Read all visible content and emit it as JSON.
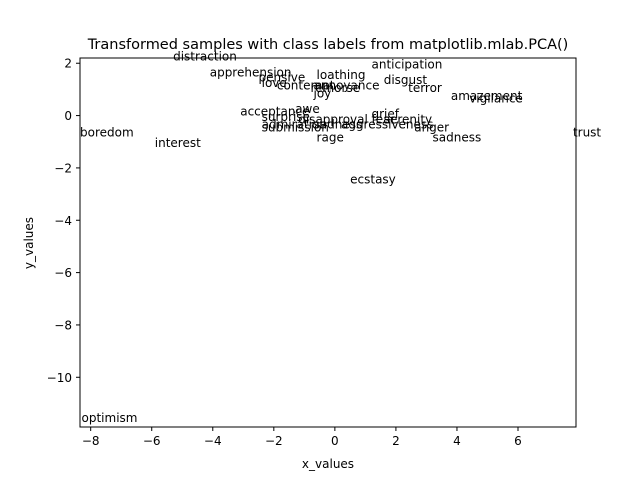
{
  "chart_data": {
    "type": "scatter",
    "title": "Transformed samples with class labels from matplotlib.mlab.PCA()",
    "xlabel": "x_values",
    "ylabel": "y_values",
    "xlim": [
      -8.35,
      7.9
    ],
    "ylim": [
      -11.9,
      2.2
    ],
    "xticks": [
      -8,
      -6,
      -4,
      -2,
      0,
      2,
      4,
      6
    ],
    "yticks": [
      2,
      0,
      -2,
      -4,
      -6,
      -8,
      -10
    ],
    "xtick_labels": [
      "−8",
      "−6",
      "−4",
      "−2",
      "0",
      "2",
      "4",
      "6"
    ],
    "ytick_labels": [
      "2",
      "0",
      "−2",
      "−4",
      "−6",
      "−8",
      "−10"
    ],
    "grid": false,
    "points": [
      {
        "label": "distraction",
        "x": -5.3,
        "y": 2.1
      },
      {
        "label": "anticipation",
        "x": 1.2,
        "y": 1.8
      },
      {
        "label": "apprehension",
        "x": -4.1,
        "y": 1.5
      },
      {
        "label": "loathing",
        "x": -0.6,
        "y": 1.4
      },
      {
        "label": "pensive",
        "x": -2.5,
        "y": 1.3
      },
      {
        "label": "disgust",
        "x": 1.6,
        "y": 1.2
      },
      {
        "label": "love",
        "x": -2.4,
        "y": 1.1
      },
      {
        "label": "annoyance",
        "x": -0.7,
        "y": 1.0
      },
      {
        "label": "contempt",
        "x": -1.9,
        "y": 1.0
      },
      {
        "label": "terror",
        "x": 2.4,
        "y": 0.9
      },
      {
        "label": "remorse",
        "x": -0.8,
        "y": 0.9
      },
      {
        "label": "joy",
        "x": -0.7,
        "y": 0.7
      },
      {
        "label": "amazement",
        "x": 3.8,
        "y": 0.6
      },
      {
        "label": "vigilance",
        "x": 4.4,
        "y": 0.5
      },
      {
        "label": "acceptance",
        "x": -3.1,
        "y": 0.0
      },
      {
        "label": "awe",
        "x": -1.3,
        "y": 0.1
      },
      {
        "label": "grief",
        "x": 1.2,
        "y": -0.1
      },
      {
        "label": "surprise",
        "x": -2.4,
        "y": -0.2
      },
      {
        "label": "disapproval",
        "x": -1.2,
        "y": -0.3
      },
      {
        "label": "fear",
        "x": 1.2,
        "y": -0.3
      },
      {
        "label": "serenity",
        "x": 1.6,
        "y": -0.3
      },
      {
        "label": "admiration",
        "x": -2.4,
        "y": -0.5
      },
      {
        "label": "submission",
        "x": -2.4,
        "y": -0.6
      },
      {
        "label": "sadness",
        "x": -0.7,
        "y": -0.5
      },
      {
        "label": "aggressiveness",
        "x": 0.2,
        "y": -0.5
      },
      {
        "label": "anger",
        "x": 2.6,
        "y": -0.6
      },
      {
        "label": "rage",
        "x": -0.6,
        "y": -1.0
      },
      {
        "label": "sadness",
        "x": 3.2,
        "y": -1.0
      },
      {
        "label": "boredom",
        "x": -8.35,
        "y": -0.8
      },
      {
        "label": "trust",
        "x": 7.8,
        "y": -0.8
      },
      {
        "label": "interest",
        "x": -5.9,
        "y": -1.2
      },
      {
        "label": "ecstasy",
        "x": 0.5,
        "y": -2.6
      },
      {
        "label": "optimism",
        "x": -8.3,
        "y": -11.7
      }
    ]
  }
}
